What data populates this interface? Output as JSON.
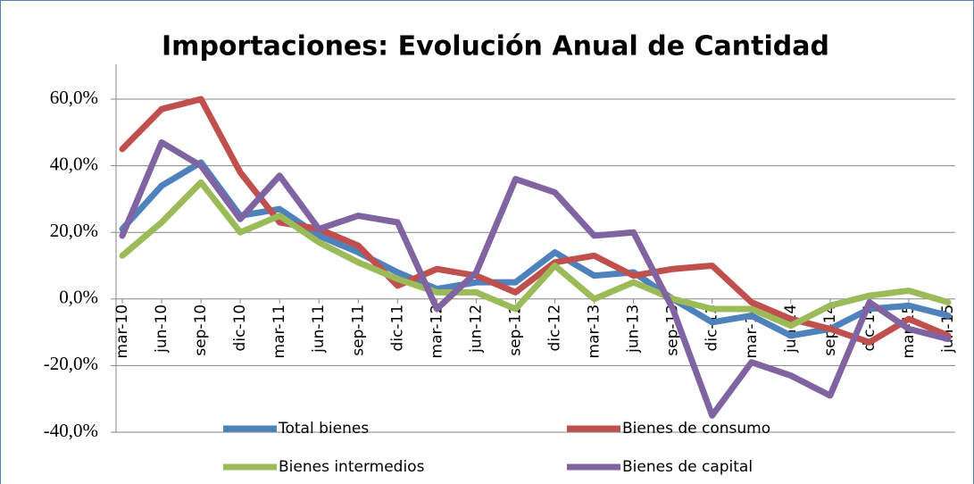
{
  "chart_data": {
    "type": "line",
    "title": "Importaciones: Evolución Anual de Cantidad",
    "categories": [
      "mar-10",
      "jun-10",
      "sep-10",
      "dic-10",
      "mar-11",
      "jun-11",
      "sep-11",
      "dic-11",
      "mar-12",
      "jun-12",
      "sep-12",
      "dic-12",
      "mar-13",
      "jun-13",
      "sep-13",
      "dic-13",
      "mar-14",
      "jun-14",
      "sep-14",
      "dic-14",
      "mar-15",
      "jun-15"
    ],
    "series": [
      {
        "name": "Total bienes",
        "color": "#4f81bd",
        "values": [
          21,
          34,
          41,
          25,
          27,
          19,
          14,
          8,
          3,
          5,
          5,
          14,
          7,
          8,
          0,
          -7,
          -5,
          -11,
          -9,
          -3,
          -2,
          -5
        ]
      },
      {
        "name": "Bienes de consumo",
        "color": "#c0504d",
        "values": [
          45,
          57,
          60,
          38,
          23,
          21,
          16,
          4,
          9,
          7,
          2,
          11,
          13,
          7,
          9,
          10,
          -1,
          -6,
          -9,
          -13,
          -6,
          -11
        ]
      },
      {
        "name": "Bienes intermedios",
        "color": "#9bbb59",
        "values": [
          13,
          23,
          35,
          20,
          25,
          17,
          11,
          6,
          2,
          2,
          -3,
          10,
          0,
          5,
          0,
          -3,
          -3,
          -8,
          -2,
          1,
          2.5,
          -1
        ]
      },
      {
        "name": "Bienes de capital",
        "color": "#8064a2",
        "values": [
          19,
          47,
          40,
          24,
          37,
          21,
          25,
          23,
          -3,
          8,
          36,
          32,
          19,
          20,
          -3,
          -35,
          -19,
          -23,
          -29,
          -1,
          -9,
          -12
        ]
      }
    ],
    "ylim": [
      -40,
      60
    ],
    "yticks": [
      {
        "value": -40,
        "label": "-40,0%"
      },
      {
        "value": -20,
        "label": "-20,0%"
      },
      {
        "value": 0,
        "label": "0,0%"
      },
      {
        "value": 20,
        "label": "20,0%"
      },
      {
        "value": 40,
        "label": "40,0%"
      },
      {
        "value": 60,
        "label": "60,0%"
      }
    ],
    "grid": true
  }
}
